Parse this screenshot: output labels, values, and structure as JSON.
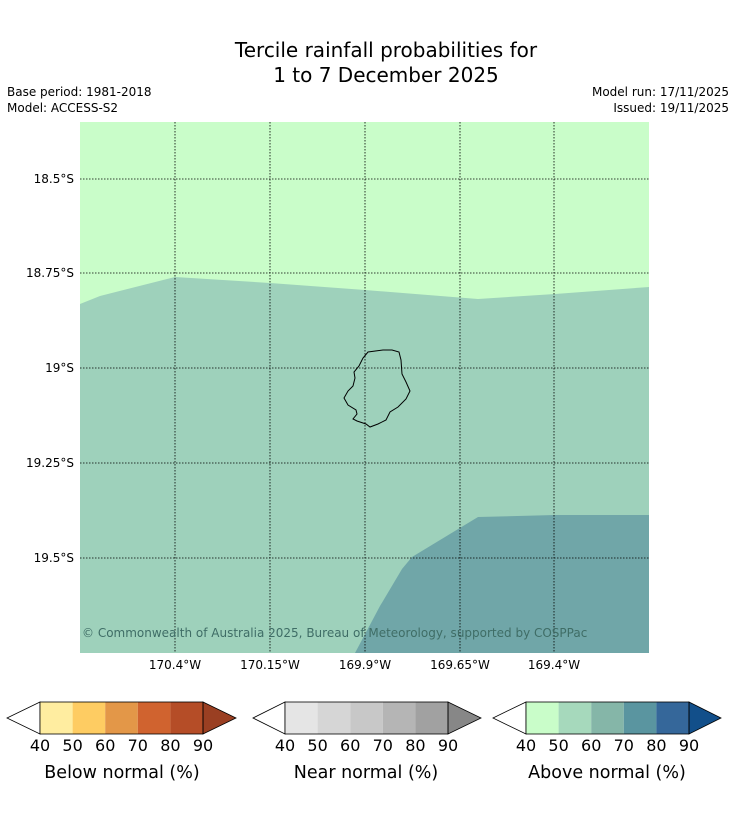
{
  "header": {
    "title_line1": "Tercile rainfall probabilities for",
    "title_line2": "1 to 7 December 2025",
    "base_period": "Base period: 1981-2018",
    "model": "Model: ACCESS-S2",
    "model_run": "Model run: 17/11/2025",
    "issued": "Issued: 19/11/2025"
  },
  "map": {
    "lon_labels": [
      "170.4°W",
      "170.15°W",
      "169.9°W",
      "169.65°W",
      "169.4°W"
    ],
    "lat_labels": [
      "18.5°S",
      "18.75°S",
      "19°S",
      "19.25°S",
      "19.5°S"
    ],
    "copyright": "© Commonwealth of Australia 2025, Bureau of Meteorology, supported by COSPPac",
    "regions": [
      {
        "name": "above-normal-40-50",
        "color": "#c9fdc9"
      },
      {
        "name": "above-normal-50-60",
        "color": "#9ed1bb"
      },
      {
        "name": "above-normal-60-70",
        "color": "#70a6a8"
      }
    ],
    "coastline_color": "#000000"
  },
  "legend": {
    "colorbars": [
      {
        "label": "Below normal (%)",
        "ticks": [
          "40",
          "50",
          "60",
          "70",
          "80",
          "90"
        ],
        "colors": [
          "#ffeda0",
          "#fecc62",
          "#e39748",
          "#d0632f",
          "#b54d27"
        ],
        "extend_low": "#ffffff",
        "extend_high": "#9a3f22"
      },
      {
        "label": "Near normal (%)",
        "ticks": [
          "40",
          "50",
          "60",
          "70",
          "80",
          "90"
        ],
        "colors": [
          "#e5e5e5",
          "#d6d6d6",
          "#c8c8c8",
          "#b5b5b5",
          "#a1a1a1"
        ],
        "extend_low": "#ffffff",
        "extend_high": "#878787"
      },
      {
        "label": "Above normal (%)",
        "ticks": [
          "40",
          "50",
          "60",
          "70",
          "80",
          "90"
        ],
        "colors": [
          "#c9fdc9",
          "#a6d9bc",
          "#85b6a8",
          "#5a95a0",
          "#35679a"
        ],
        "extend_low": "#ffffff",
        "extend_high": "#124f8a"
      }
    ]
  }
}
